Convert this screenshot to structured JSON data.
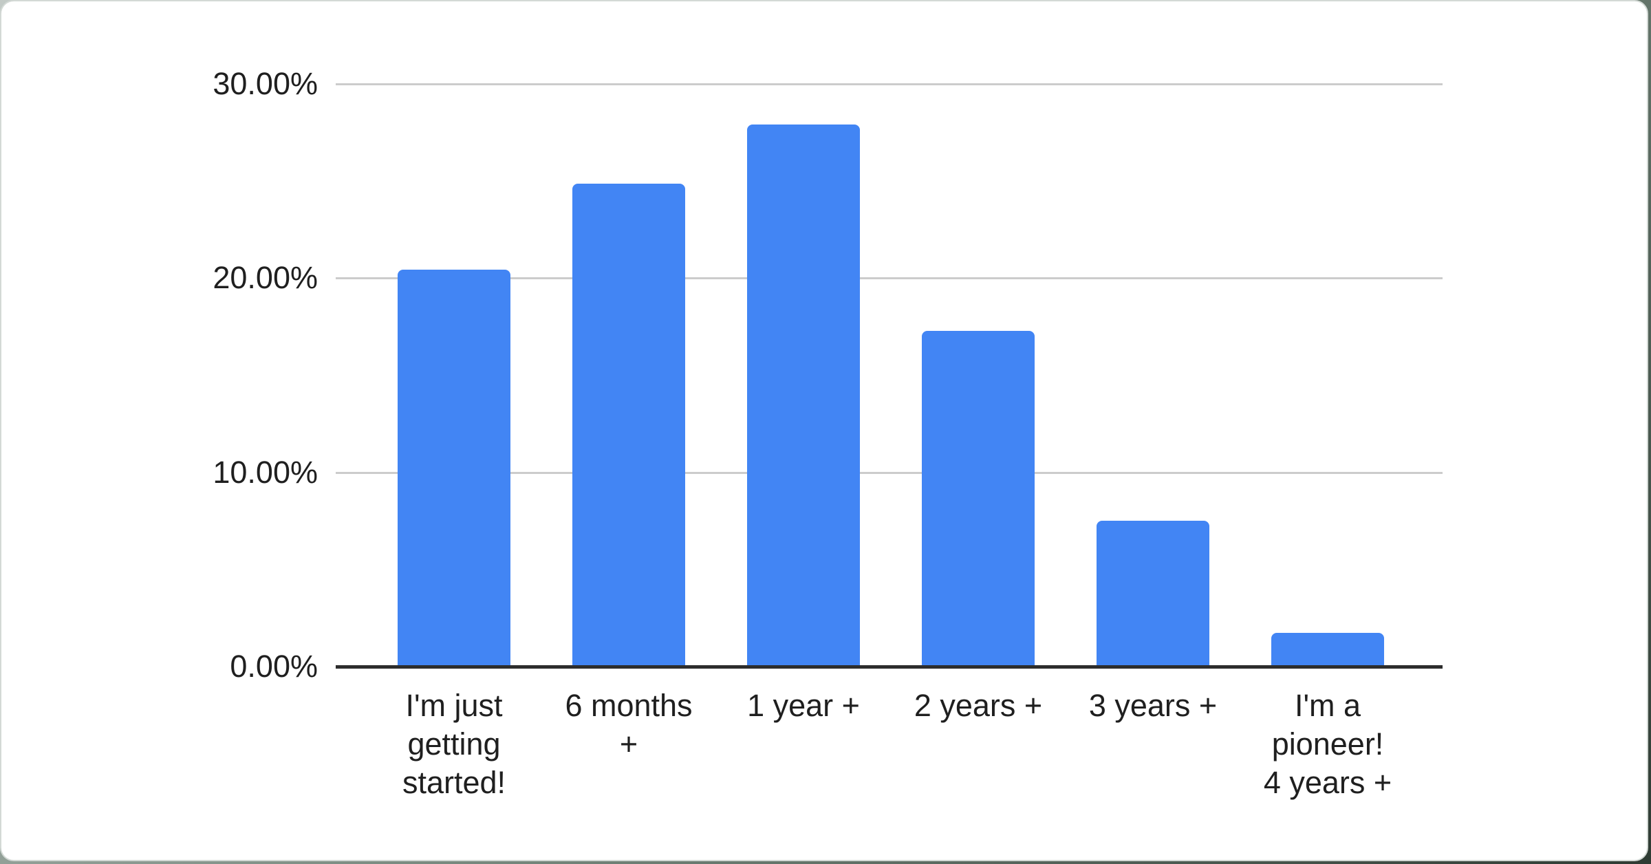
{
  "chart_data": {
    "type": "bar",
    "title": "",
    "legend": "none",
    "grid": true,
    "categories": [
      {
        "label": "I'm just getting started!",
        "lines": "I'm just\ngetting\nstarted!"
      },
      {
        "label": "6 months +",
        "lines": "6 months\n+"
      },
      {
        "label": "1 year +",
        "lines": "1 year +"
      },
      {
        "label": "2 years +",
        "lines": "2 years +"
      },
      {
        "label": "3 years +",
        "lines": "3 years +"
      },
      {
        "label": "I'm a pioneer! 4 years +",
        "lines": "I'm a\npioneer!\n4 years +"
      }
    ],
    "values": [
      20.45,
      24.85,
      27.9,
      17.3,
      7.5,
      1.75
    ],
    "value_format": "percent",
    "xlabel": "",
    "ylabel": "",
    "ylim": [
      0,
      30
    ],
    "y_ticks": [
      {
        "value": 0,
        "label": "0.00%"
      },
      {
        "value": 10,
        "label": "10.00%"
      },
      {
        "value": 20,
        "label": "20.00%"
      },
      {
        "value": 30,
        "label": "30.00%"
      }
    ],
    "colors": {
      "bar": "#4285f4",
      "gridline": "#cccccc",
      "axis_line": "#2d2d2d",
      "text": "#1f1f1f",
      "card_background": "#ffffff",
      "card_border": "#d3d9d5",
      "page_corner_background": "#2e3b33"
    }
  }
}
